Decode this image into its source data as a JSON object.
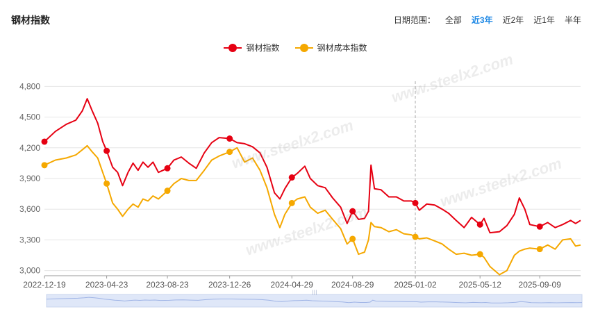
{
  "title": "钢材指数",
  "range_selector": {
    "label": "日期范围：",
    "options": [
      "全部",
      "近3年",
      "近2年",
      "近1年",
      "半年"
    ],
    "active": "近3年"
  },
  "watermark": "www.steelx2.com",
  "colors": {
    "series1": "#e60012",
    "series2": "#f5a800",
    "grid": "#e6e6e6",
    "axis_text": "#666666",
    "active": "#1e88e5"
  },
  "chart_data": {
    "type": "line",
    "x_labels": [
      "2022-12-19",
      "2023-04-23",
      "2023-08-23",
      "2023-12-26",
      "2024-04-29",
      "2024-08-29",
      "2025-01-02",
      "2025-05-12",
      "2025-09-09"
    ],
    "x_range": [
      "2022-12-19",
      "2025-11-30"
    ],
    "ylim": [
      2950,
      4850
    ],
    "y_ticks": [
      "3,000",
      "3,300",
      "3,600",
      "3,900",
      "4,200",
      "4,500",
      "4,800"
    ],
    "y_tick_values": [
      3000,
      3300,
      3600,
      3900,
      4200,
      4500,
      4800
    ],
    "crosshair_date": "2025-01-02",
    "legend_position": "top-center",
    "grid": true,
    "series": [
      {
        "name": "钢材指数",
        "marker_dates": [
          "2022-12-19",
          "2023-04-23",
          "2023-08-23",
          "2023-12-26",
          "2024-04-29",
          "2024-08-29",
          "2025-01-02",
          "2025-05-12",
          "2025-09-09"
        ],
        "points": [
          [
            "2022-12-19",
            4260
          ],
          [
            "2023-01-10",
            4360
          ],
          [
            "2023-02-01",
            4430
          ],
          [
            "2023-02-20",
            4470
          ],
          [
            "2023-03-05",
            4560
          ],
          [
            "2023-03-15",
            4680
          ],
          [
            "2023-03-25",
            4560
          ],
          [
            "2023-04-05",
            4440
          ],
          [
            "2023-04-15",
            4260
          ],
          [
            "2023-04-23",
            4170
          ],
          [
            "2023-05-05",
            4010
          ],
          [
            "2023-05-15",
            3960
          ],
          [
            "2023-05-25",
            3830
          ],
          [
            "2023-06-05",
            3960
          ],
          [
            "2023-06-15",
            4050
          ],
          [
            "2023-06-25",
            3980
          ],
          [
            "2023-07-05",
            4060
          ],
          [
            "2023-07-15",
            4010
          ],
          [
            "2023-07-25",
            4060
          ],
          [
            "2023-08-05",
            3960
          ],
          [
            "2023-08-23",
            4000
          ],
          [
            "2023-09-05",
            4080
          ],
          [
            "2023-09-20",
            4110
          ],
          [
            "2023-10-05",
            4050
          ],
          [
            "2023-10-20",
            4000
          ],
          [
            "2023-11-05",
            4150
          ],
          [
            "2023-11-20",
            4250
          ],
          [
            "2023-12-05",
            4300
          ],
          [
            "2023-12-26",
            4290
          ],
          [
            "2024-01-10",
            4250
          ],
          [
            "2024-01-25",
            4240
          ],
          [
            "2024-02-10",
            4210
          ],
          [
            "2024-02-25",
            4150
          ],
          [
            "2024-03-10",
            4010
          ],
          [
            "2024-03-25",
            3760
          ],
          [
            "2024-04-05",
            3700
          ],
          [
            "2024-04-15",
            3800
          ],
          [
            "2024-04-29",
            3910
          ],
          [
            "2024-05-10",
            3950
          ],
          [
            "2024-05-25",
            4020
          ],
          [
            "2024-06-05",
            3900
          ],
          [
            "2024-06-20",
            3830
          ],
          [
            "2024-07-05",
            3810
          ],
          [
            "2024-07-20",
            3710
          ],
          [
            "2024-08-05",
            3620
          ],
          [
            "2024-08-18",
            3460
          ],
          [
            "2024-08-29",
            3580
          ],
          [
            "2024-09-10",
            3500
          ],
          [
            "2024-09-22",
            3510
          ],
          [
            "2024-09-30",
            3580
          ],
          [
            "2024-10-05",
            4030
          ],
          [
            "2024-10-12",
            3800
          ],
          [
            "2024-10-25",
            3790
          ],
          [
            "2024-11-10",
            3720
          ],
          [
            "2024-11-25",
            3720
          ],
          [
            "2024-12-10",
            3680
          ],
          [
            "2024-12-25",
            3680
          ],
          [
            "2025-01-02",
            3660
          ],
          [
            "2025-01-10",
            3590
          ],
          [
            "2025-01-25",
            3650
          ],
          [
            "2025-02-10",
            3640
          ],
          [
            "2025-02-25",
            3600
          ],
          [
            "2025-03-10",
            3560
          ],
          [
            "2025-03-25",
            3490
          ],
          [
            "2025-04-10",
            3420
          ],
          [
            "2025-04-25",
            3520
          ],
          [
            "2025-05-12",
            3450
          ],
          [
            "2025-05-20",
            3510
          ],
          [
            "2025-06-01",
            3370
          ],
          [
            "2025-06-20",
            3380
          ],
          [
            "2025-07-05",
            3440
          ],
          [
            "2025-07-20",
            3550
          ],
          [
            "2025-07-30",
            3710
          ],
          [
            "2025-08-10",
            3600
          ],
          [
            "2025-08-20",
            3450
          ],
          [
            "2025-09-09",
            3430
          ],
          [
            "2025-09-25",
            3470
          ],
          [
            "2025-10-10",
            3420
          ],
          [
            "2025-10-25",
            3450
          ],
          [
            "2025-11-10",
            3490
          ],
          [
            "2025-11-20",
            3460
          ],
          [
            "2025-11-30",
            3490
          ]
        ]
      },
      {
        "name": "钢材成本指数",
        "marker_dates": [
          "2022-12-19",
          "2023-04-23",
          "2023-08-23",
          "2023-12-26",
          "2024-04-29",
          "2024-08-29",
          "2025-01-02",
          "2025-05-12",
          "2025-09-09"
        ],
        "points": [
          [
            "2022-12-19",
            4030
          ],
          [
            "2023-01-10",
            4080
          ],
          [
            "2023-02-01",
            4100
          ],
          [
            "2023-02-20",
            4130
          ],
          [
            "2023-03-05",
            4180
          ],
          [
            "2023-03-15",
            4220
          ],
          [
            "2023-03-25",
            4160
          ],
          [
            "2023-04-05",
            4100
          ],
          [
            "2023-04-15",
            3960
          ],
          [
            "2023-04-23",
            3850
          ],
          [
            "2023-05-05",
            3660
          ],
          [
            "2023-05-15",
            3600
          ],
          [
            "2023-05-25",
            3530
          ],
          [
            "2023-06-05",
            3600
          ],
          [
            "2023-06-15",
            3650
          ],
          [
            "2023-06-25",
            3620
          ],
          [
            "2023-07-05",
            3700
          ],
          [
            "2023-07-15",
            3680
          ],
          [
            "2023-07-25",
            3730
          ],
          [
            "2023-08-05",
            3700
          ],
          [
            "2023-08-23",
            3780
          ],
          [
            "2023-09-05",
            3850
          ],
          [
            "2023-09-20",
            3900
          ],
          [
            "2023-10-05",
            3880
          ],
          [
            "2023-10-20",
            3880
          ],
          [
            "2023-11-05",
            3980
          ],
          [
            "2023-11-20",
            4080
          ],
          [
            "2023-12-05",
            4120
          ],
          [
            "2023-12-26",
            4160
          ],
          [
            "2024-01-10",
            4200
          ],
          [
            "2024-01-25",
            4060
          ],
          [
            "2024-02-10",
            4100
          ],
          [
            "2024-02-25",
            3980
          ],
          [
            "2024-03-10",
            3810
          ],
          [
            "2024-03-25",
            3550
          ],
          [
            "2024-04-05",
            3420
          ],
          [
            "2024-04-15",
            3550
          ],
          [
            "2024-04-29",
            3660
          ],
          [
            "2024-05-10",
            3700
          ],
          [
            "2024-05-25",
            3720
          ],
          [
            "2024-06-05",
            3620
          ],
          [
            "2024-06-20",
            3560
          ],
          [
            "2024-07-05",
            3590
          ],
          [
            "2024-07-20",
            3500
          ],
          [
            "2024-08-05",
            3410
          ],
          [
            "2024-08-18",
            3260
          ],
          [
            "2024-08-29",
            3310
          ],
          [
            "2024-09-10",
            3160
          ],
          [
            "2024-09-22",
            3180
          ],
          [
            "2024-09-30",
            3300
          ],
          [
            "2024-10-05",
            3470
          ],
          [
            "2024-10-12",
            3430
          ],
          [
            "2024-10-25",
            3420
          ],
          [
            "2024-11-10",
            3380
          ],
          [
            "2024-11-25",
            3400
          ],
          [
            "2024-12-10",
            3360
          ],
          [
            "2024-12-25",
            3350
          ],
          [
            "2025-01-02",
            3330
          ],
          [
            "2025-01-10",
            3310
          ],
          [
            "2025-01-25",
            3320
          ],
          [
            "2025-02-10",
            3290
          ],
          [
            "2025-02-25",
            3260
          ],
          [
            "2025-03-10",
            3210
          ],
          [
            "2025-03-25",
            3160
          ],
          [
            "2025-04-10",
            3170
          ],
          [
            "2025-04-25",
            3150
          ],
          [
            "2025-05-12",
            3160
          ],
          [
            "2025-05-20",
            3130
          ],
          [
            "2025-06-01",
            3040
          ],
          [
            "2025-06-20",
            2960
          ],
          [
            "2025-07-05",
            3000
          ],
          [
            "2025-07-20",
            3150
          ],
          [
            "2025-07-30",
            3190
          ],
          [
            "2025-08-10",
            3210
          ],
          [
            "2025-08-20",
            3220
          ],
          [
            "2025-09-09",
            3210
          ],
          [
            "2025-09-25",
            3250
          ],
          [
            "2025-10-10",
            3210
          ],
          [
            "2025-10-25",
            3300
          ],
          [
            "2025-11-10",
            3310
          ],
          [
            "2025-11-20",
            3240
          ],
          [
            "2025-11-30",
            3250
          ]
        ]
      }
    ]
  },
  "slider": {
    "handle_glyph": "|||"
  }
}
